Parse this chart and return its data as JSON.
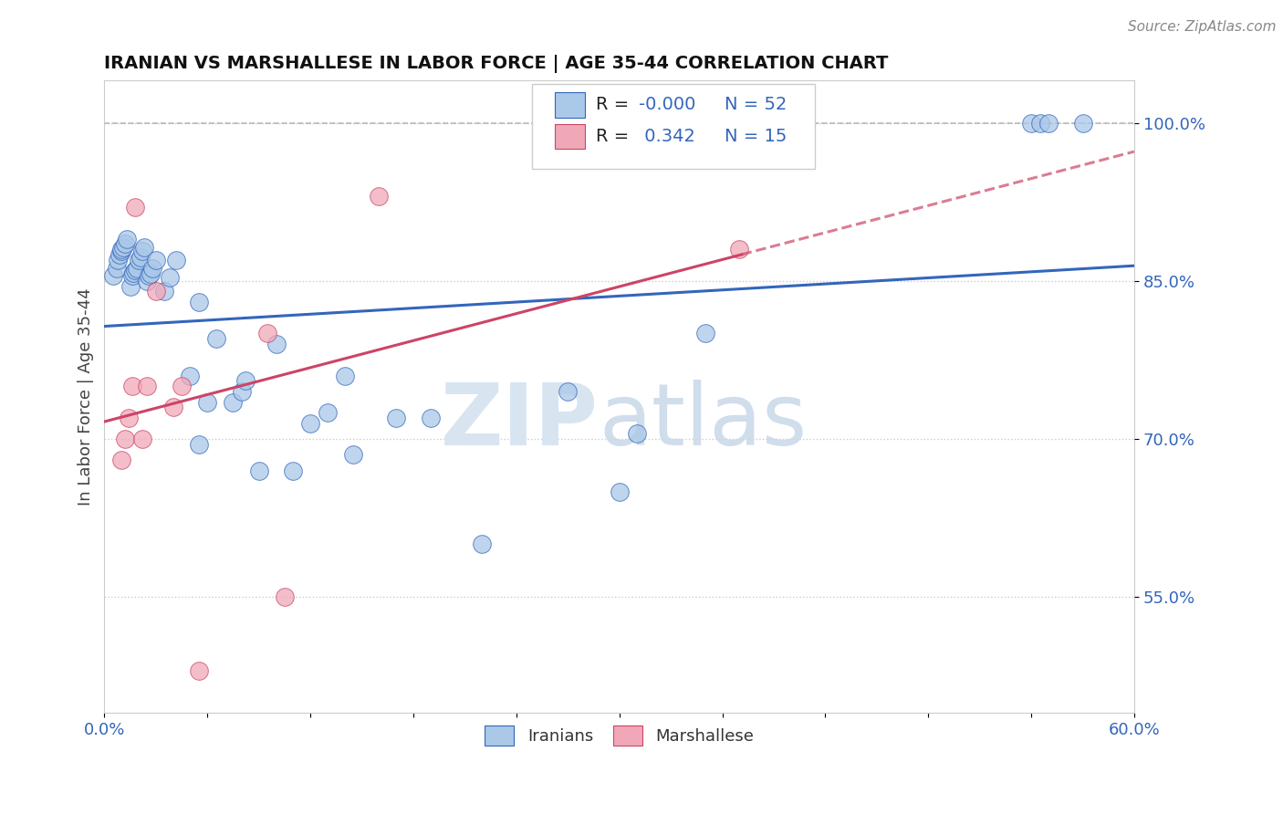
{
  "title": "IRANIAN VS MARSHALLESE IN LABOR FORCE | AGE 35-44 CORRELATION CHART",
  "source": "Source: ZipAtlas.com",
  "ylabel": "In Labor Force | Age 35-44",
  "xlim": [
    0.0,
    0.6
  ],
  "ylim": [
    0.44,
    1.04
  ],
  "xticks": [
    0.0,
    0.06,
    0.12,
    0.18,
    0.24,
    0.3,
    0.36,
    0.42,
    0.48,
    0.54,
    0.6
  ],
  "xtick_labels": [
    "0.0%",
    "",
    "",
    "",
    "",
    "",
    "",
    "",
    "",
    "",
    "60.0%"
  ],
  "ytick_right_vals": [
    0.55,
    0.7,
    0.85,
    1.0
  ],
  "ytick_right_labels": [
    "55.0%",
    "70.0%",
    "85.0%",
    "100.0%"
  ],
  "r_iranian": -0.0,
  "n_iranian": 52,
  "r_marshallese": 0.342,
  "n_marshallese": 15,
  "iranian_color": "#aac8e8",
  "marshallese_color": "#f0a8b8",
  "trend_iranian_color": "#3366bb",
  "trend_marshallese_color": "#cc4466",
  "background_color": "#ffffff",
  "iranians_x": [
    0.005,
    0.007,
    0.008,
    0.009,
    0.01,
    0.01,
    0.011,
    0.012,
    0.013,
    0.015,
    0.016,
    0.017,
    0.018,
    0.019,
    0.02,
    0.021,
    0.022,
    0.023,
    0.025,
    0.026,
    0.027,
    0.028,
    0.03,
    0.035,
    0.038,
    0.042,
    0.05,
    0.055,
    0.06,
    0.065,
    0.075,
    0.08,
    0.082,
    0.09,
    0.1,
    0.11,
    0.14,
    0.17,
    0.19,
    0.22,
    0.27,
    0.3,
    0.31,
    0.35,
    0.055,
    0.12,
    0.13,
    0.145,
    0.54,
    0.545,
    0.55,
    0.57
  ],
  "iranians_y": [
    0.855,
    0.862,
    0.87,
    0.875,
    0.878,
    0.88,
    0.882,
    0.885,
    0.89,
    0.845,
    0.855,
    0.858,
    0.86,
    0.862,
    0.87,
    0.872,
    0.878,
    0.882,
    0.85,
    0.855,
    0.857,
    0.862,
    0.87,
    0.84,
    0.853,
    0.87,
    0.76,
    0.83,
    0.735,
    0.795,
    0.735,
    0.745,
    0.755,
    0.67,
    0.79,
    0.67,
    0.76,
    0.72,
    0.72,
    0.6,
    0.745,
    0.65,
    0.705,
    0.8,
    0.695,
    0.715,
    0.725,
    0.685,
    1.0,
    1.0,
    1.0,
    1.0
  ],
  "marshallese_x": [
    0.01,
    0.012,
    0.014,
    0.016,
    0.018,
    0.022,
    0.025,
    0.03,
    0.04,
    0.045,
    0.055,
    0.095,
    0.105,
    0.16,
    0.37
  ],
  "marshallese_y": [
    0.68,
    0.7,
    0.72,
    0.75,
    0.92,
    0.7,
    0.75,
    0.84,
    0.73,
    0.75,
    0.48,
    0.8,
    0.55,
    0.93,
    0.88
  ]
}
